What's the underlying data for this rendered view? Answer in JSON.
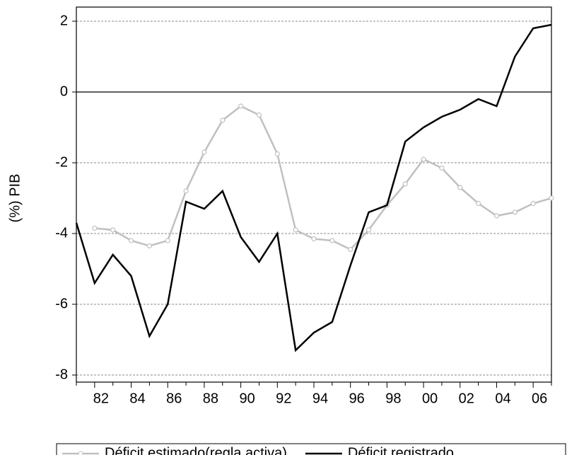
{
  "chart_data": {
    "type": "line",
    "y_label": "(%) PIB",
    "categories": [
      null,
      "82",
      null,
      "84",
      null,
      "86",
      null,
      "88",
      null,
      "90",
      null,
      "92",
      null,
      "94",
      null,
      "96",
      null,
      "98",
      null,
      "00",
      null,
      "02",
      null,
      "04",
      null,
      "06",
      null
    ],
    "series": [
      {
        "name": "Déficit estimado(regla activa)",
        "color": "#c0c0c0",
        "markers": true,
        "values": [
          null,
          -3.85,
          -3.9,
          -4.2,
          -4.35,
          -4.2,
          -2.8,
          -1.7,
          -0.8,
          -0.4,
          -0.65,
          -1.75,
          -3.9,
          -4.15,
          -4.2,
          -4.45,
          -3.9,
          -3.2,
          -2.6,
          -1.9,
          -2.15,
          -2.7,
          -3.15,
          -3.5,
          -3.4,
          -3.15,
          -3.0
        ]
      },
      {
        "name": "Déficit registrado",
        "color": "#000000",
        "markers": false,
        "values": [
          -3.7,
          -5.4,
          -4.6,
          -5.2,
          -6.9,
          -6.0,
          -3.1,
          -3.3,
          -2.8,
          -4.1,
          -4.8,
          -4.0,
          -7.3,
          -6.8,
          -6.5,
          -4.9,
          -3.4,
          -3.2,
          -1.4,
          -1.0,
          -0.7,
          -0.5,
          -0.2,
          -0.4,
          1.0,
          1.8,
          1.9
        ]
      }
    ],
    "ylim": [
      -8.2,
      2.4
    ],
    "yticks": [
      -8,
      -6,
      -4,
      -2,
      0,
      2
    ],
    "grid": true
  }
}
